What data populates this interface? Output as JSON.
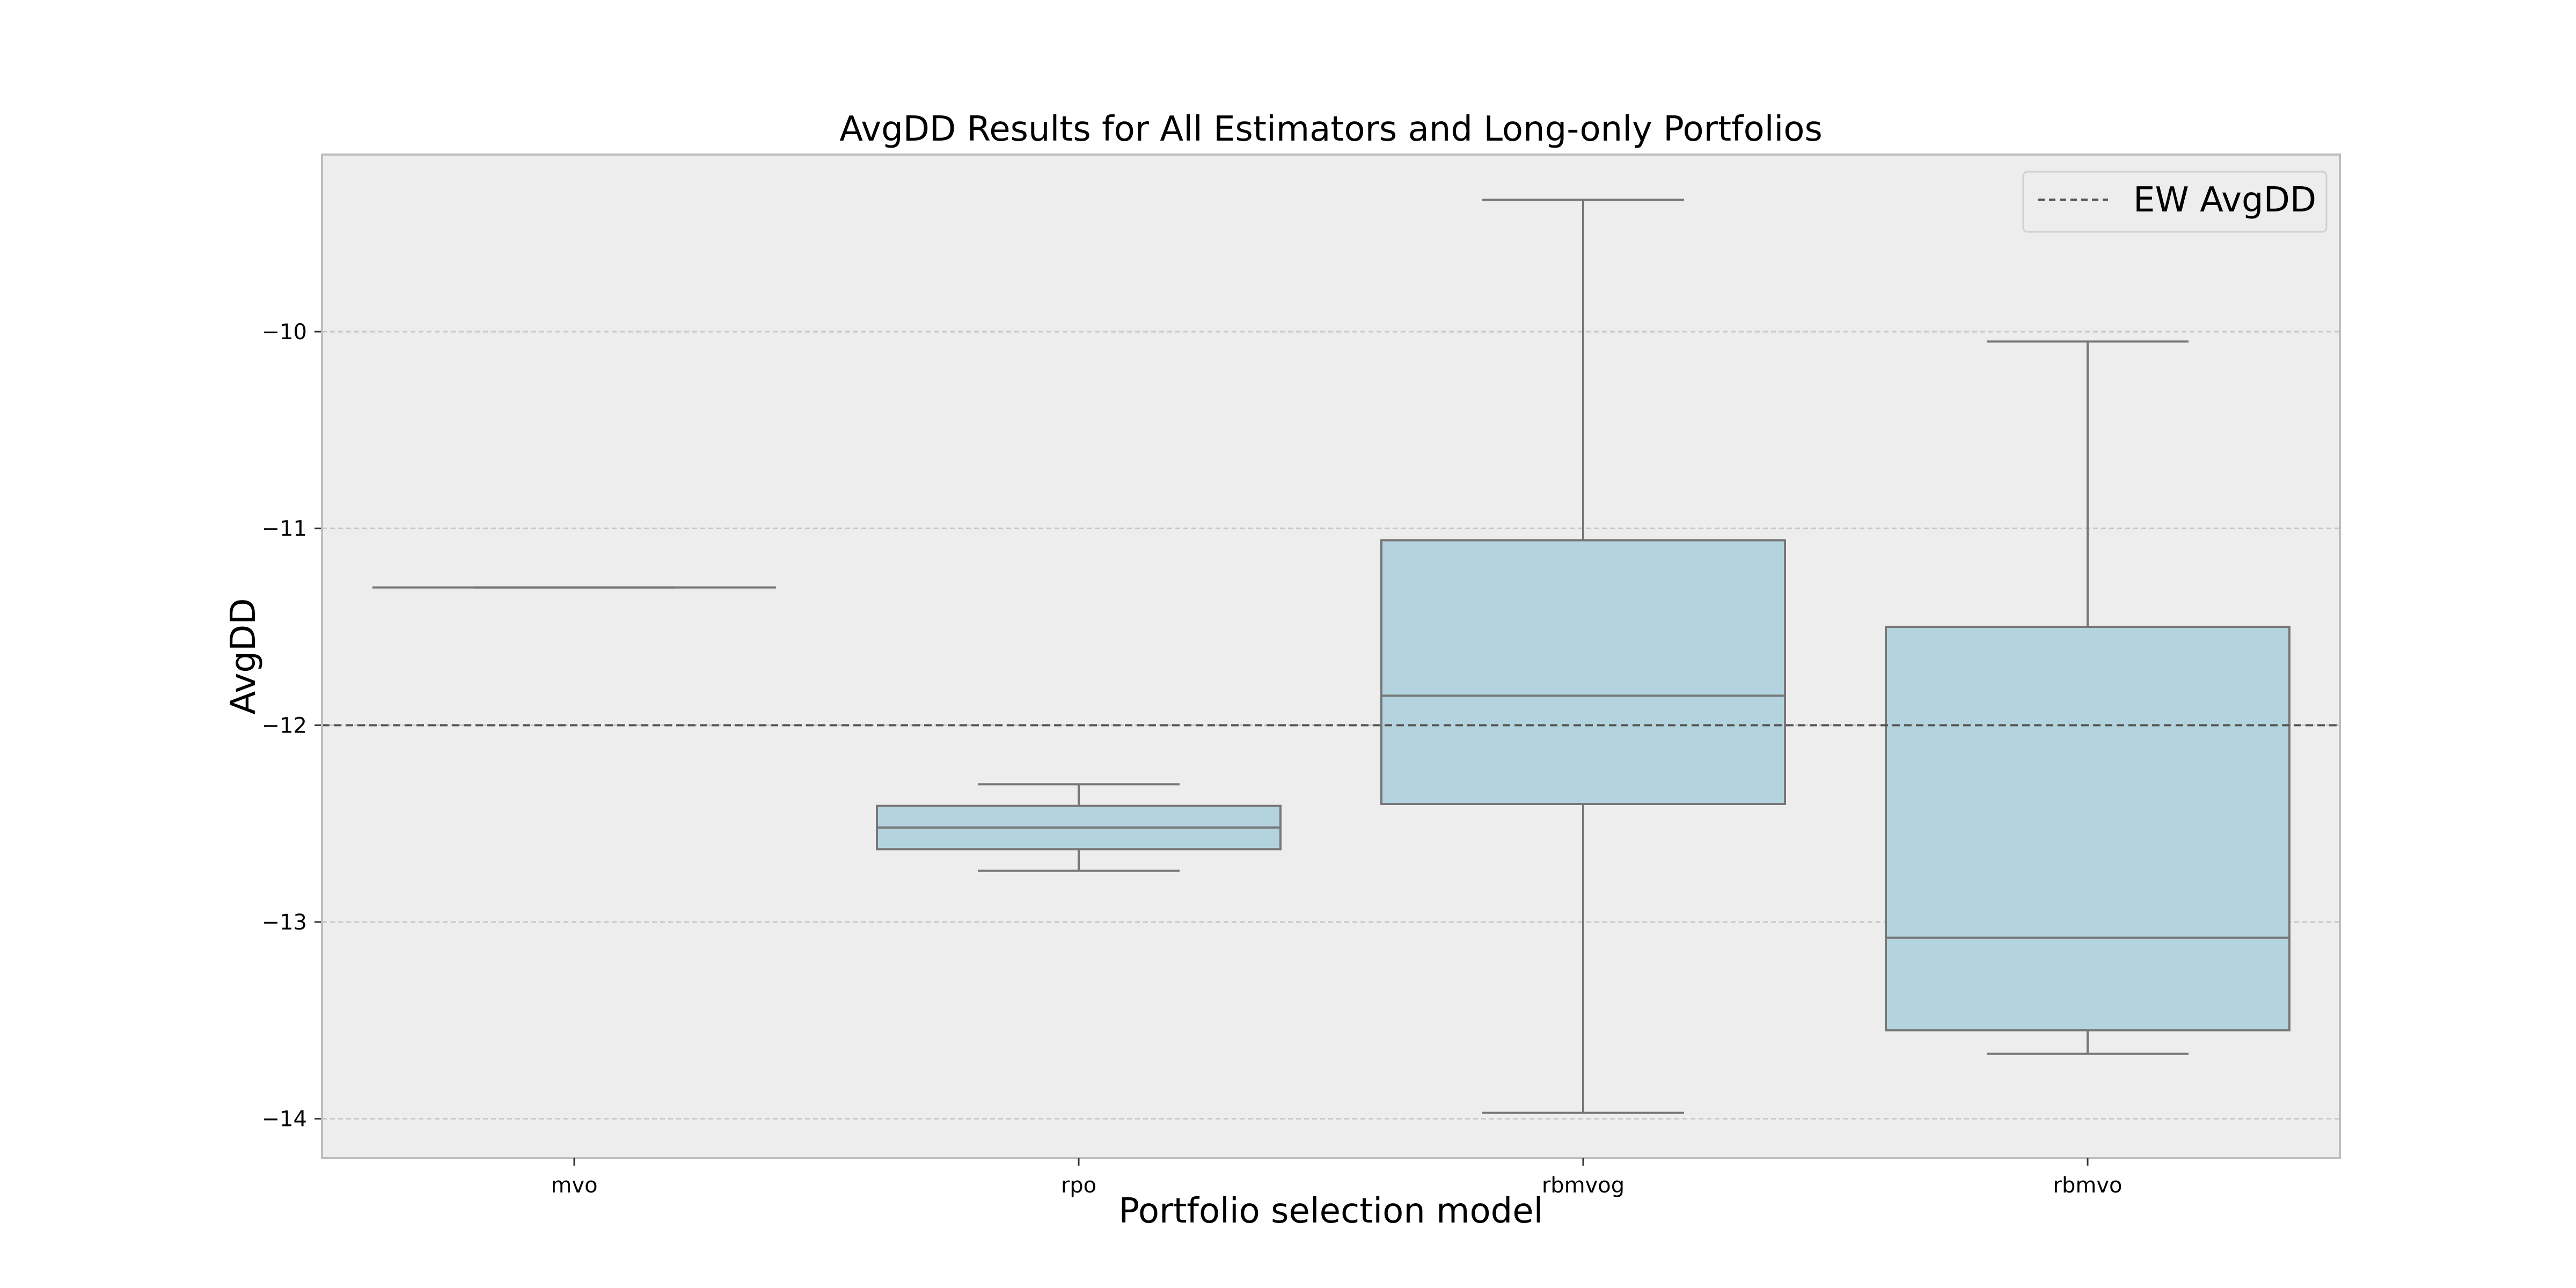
{
  "chart_data": {
    "type": "box",
    "title": "AvgDD Results for All Estimators and Long-only Portfolios",
    "xlabel": "Portfolio selection model",
    "ylabel": "AvgDD",
    "ylim": [
      -14.2,
      -9.1
    ],
    "yticks": [
      -14,
      -13,
      -12,
      -11,
      -10
    ],
    "ytick_labels": [
      "−14",
      "−13",
      "−12",
      "−11",
      "−10"
    ],
    "grid": "horizontal",
    "categories": [
      "mvo",
      "rpo",
      "rbmvog",
      "rbmvo"
    ],
    "boxes": [
      {
        "category": "mvo",
        "whisker_low": -11.3,
        "q1": -11.3,
        "median": -11.3,
        "q3": -11.3,
        "whisker_high": -11.3
      },
      {
        "category": "rpo",
        "whisker_low": -12.74,
        "q1": -12.63,
        "median": -12.52,
        "q3": -12.41,
        "whisker_high": -12.3
      },
      {
        "category": "rbmvog",
        "whisker_low": -13.97,
        "q1": -12.4,
        "median": -11.85,
        "q3": -11.06,
        "whisker_high": -9.33
      },
      {
        "category": "rbmvo",
        "whisker_low": -13.67,
        "q1": -13.55,
        "median": -13.08,
        "q3": -11.5,
        "whisker_high": -10.05
      }
    ],
    "reference_line": {
      "name": "EW AvgDD",
      "value": -12.0,
      "style": "dashed"
    },
    "legend": {
      "entries": [
        "EW AvgDD"
      ],
      "placement": "top-right"
    },
    "colors": {
      "box_fill": "#b3d4df",
      "box_edge": "#777777",
      "plot_background": "#ededed",
      "grid": "#c8c8c8",
      "reference_line": "#555555",
      "frame": "#bdbdbd"
    }
  }
}
